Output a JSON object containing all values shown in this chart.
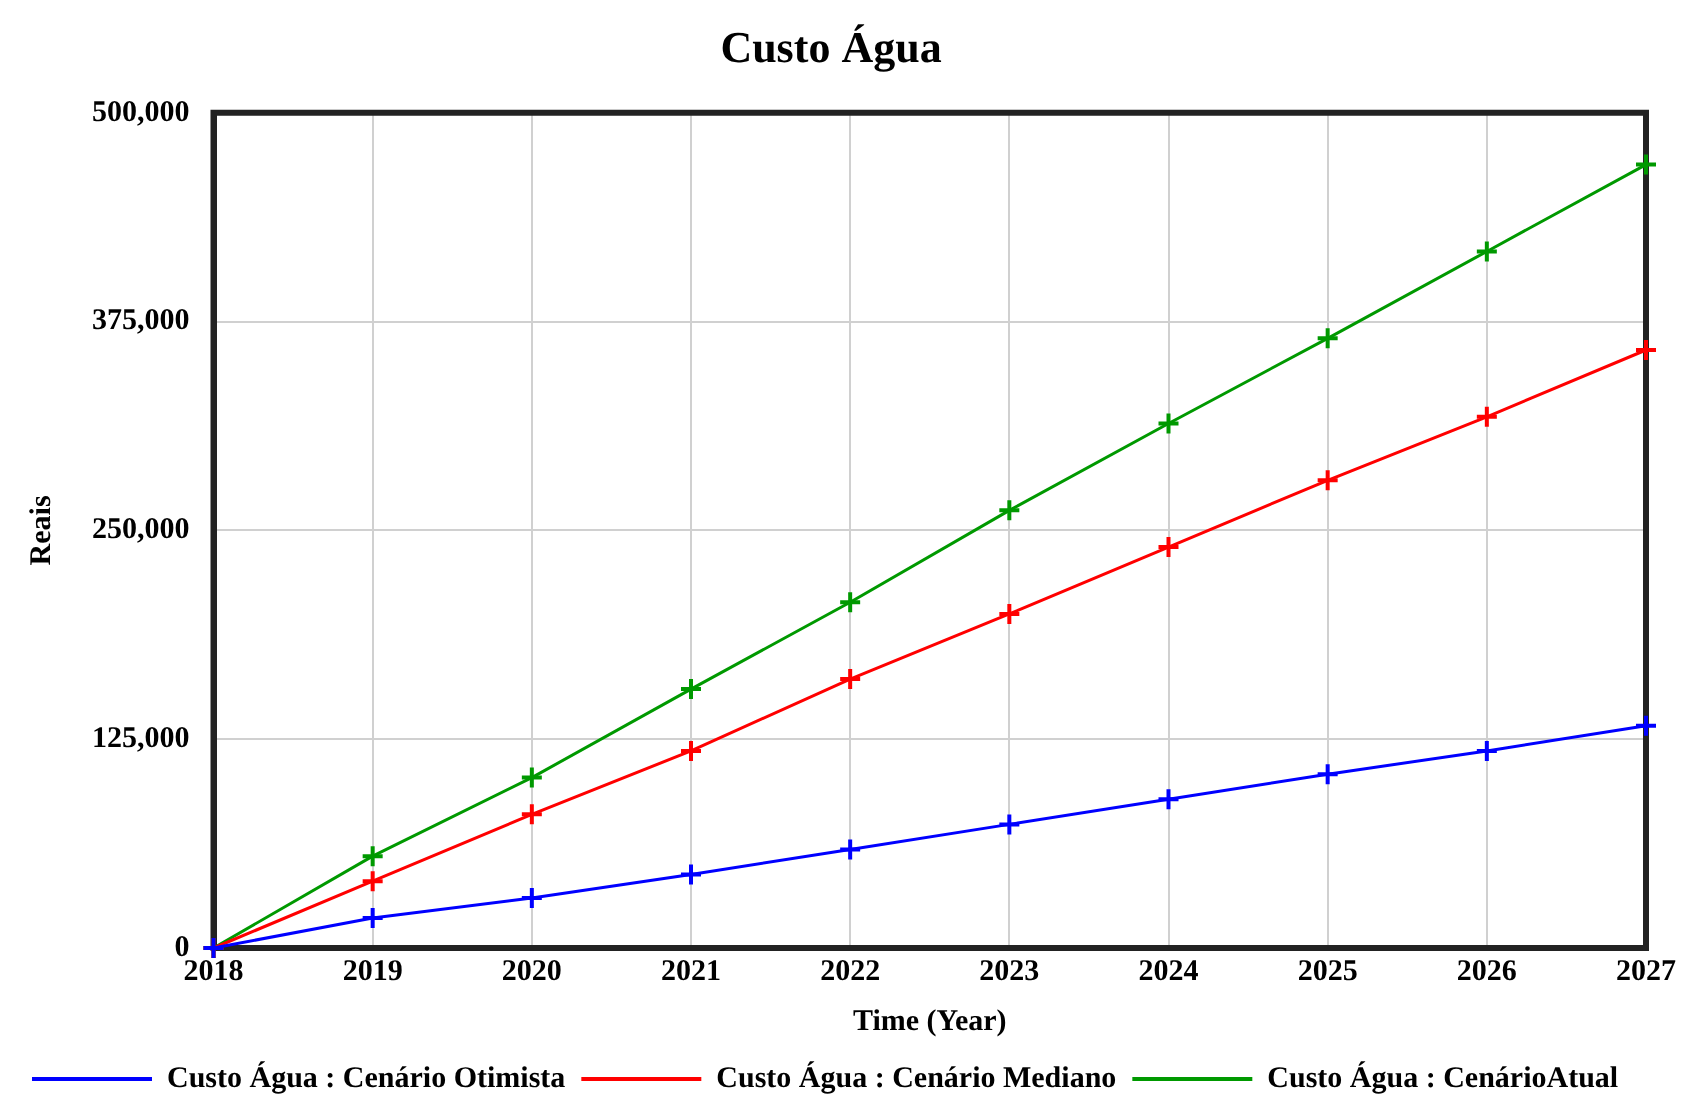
{
  "chart_data": {
    "type": "line",
    "title": "Custo Água",
    "xlabel": "Time (Year)",
    "ylabel": "Reais",
    "x": [
      2018,
      2019,
      2020,
      2021,
      2022,
      2023,
      2024,
      2025,
      2026,
      2027
    ],
    "series": [
      {
        "name": "Custo Água : Cenário Otimista",
        "color": "#0000ff",
        "values": [
          0,
          18000,
          30000,
          44000,
          59000,
          74000,
          89000,
          104000,
          118000,
          133000
        ]
      },
      {
        "name": "Custo Água : Cenário Mediano",
        "color": "#ff0000",
        "values": [
          0,
          40000,
          80000,
          118000,
          161000,
          200000,
          240000,
          280000,
          318000,
          358000
        ]
      },
      {
        "name": "Custo Água : CenárioAtual",
        "color": "#009900",
        "values": [
          0,
          55000,
          102000,
          155000,
          207000,
          262000,
          314000,
          365000,
          417000,
          469000
        ]
      }
    ],
    "xlim": [
      2018,
      2027
    ],
    "xticks": [
      2018,
      2019,
      2020,
      2021,
      2022,
      2023,
      2024,
      2025,
      2026,
      2027
    ],
    "ylim": [
      0,
      500000
    ],
    "yticks": [
      0,
      {
        "value": 125000,
        "label": "125,000"
      },
      {
        "value": 250000,
        "label": "250,000"
      },
      {
        "value": 375000,
        "label": "375,000"
      },
      {
        "value": 500000,
        "label": "500,000"
      }
    ],
    "grid": true,
    "legend": "bottom",
    "marker": "cross"
  }
}
